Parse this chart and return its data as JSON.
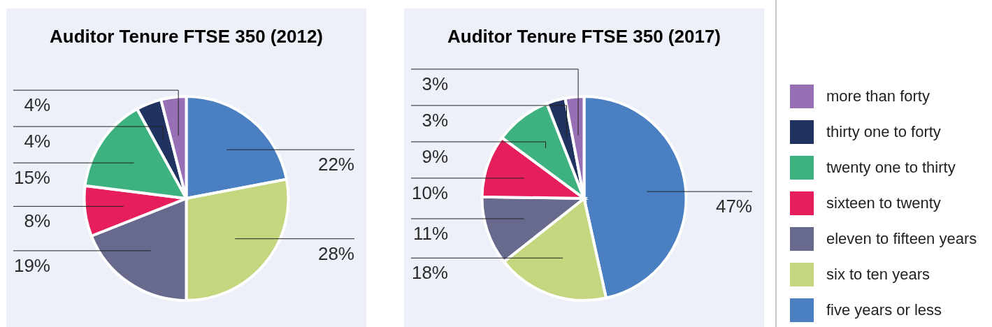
{
  "chart_data": [
    {
      "type": "pie",
      "title": "Auditor Tenure FTSE 350 (2012)",
      "categories": [
        null,
        null,
        null,
        null,
        null,
        null,
        null
      ],
      "values": [
        22,
        28,
        19,
        8,
        15,
        4,
        4
      ],
      "value_labels": [
        "22%",
        "28%",
        "19%",
        "8%",
        "15%",
        "4%",
        "4%"
      ],
      "colors": [
        "#4a7fc1",
        "#c4d67e",
        "#67698d",
        "#e61f5c",
        "#3db180",
        "#20325f",
        "#976fb4"
      ],
      "legend": false
    },
    {
      "type": "pie",
      "title": "Auditor Tenure FTSE 350 (2017)",
      "categories": [
        "five years or less",
        "six to ten years",
        "eleven to fifteen years",
        "sixteen to twenty",
        "twenty one to thirty",
        "thirty one to forty",
        "more than forty"
      ],
      "values": [
        47,
        18,
        11,
        10,
        9,
        3,
        3
      ],
      "value_labels": [
        "47%",
        "18%",
        "11%",
        "10%",
        "9%",
        "3%",
        "3%"
      ],
      "colors": [
        "#4a7fc1",
        "#c4d67e",
        "#67698d",
        "#e61f5c",
        "#3db180",
        "#20325f",
        "#976fb4"
      ],
      "legend": "right"
    }
  ]
}
